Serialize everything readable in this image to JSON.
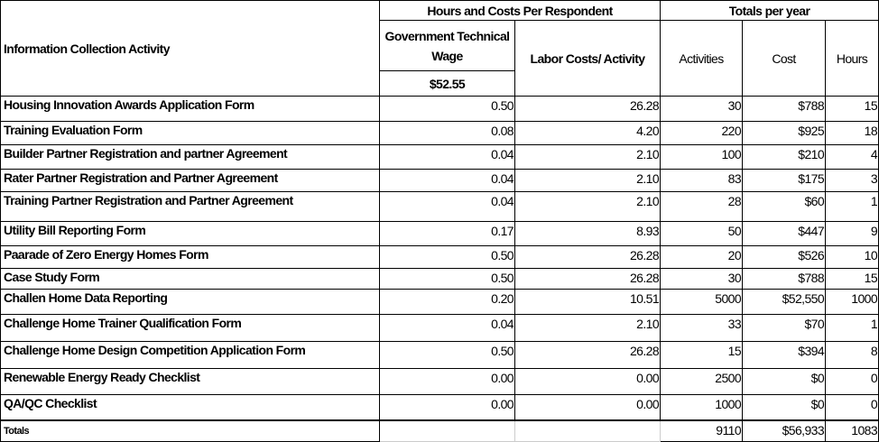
{
  "header": {
    "activity": "Information Collection Activity",
    "group_per_respondent": "Hours and Costs Per Respondent",
    "group_totals": "Totals per year",
    "wage_label": "Government Technical Wage",
    "wage_value": "$52.55",
    "labor_costs": "Labor Costs/ Activity",
    "activities": "Activities",
    "cost": "Cost",
    "hours": "Hours"
  },
  "rows": [
    {
      "activity": "Housing Innovation Awards Application Form",
      "wage": "0.50",
      "labor": "26.28",
      "activities": "30",
      "cost": "$788",
      "hours": "15"
    },
    {
      "activity": "Training Evaluation Form",
      "wage": "0.08",
      "labor": "4.20",
      "activities": "220",
      "cost": "$925",
      "hours": "18"
    },
    {
      "activity": "Builder Partner Registration and partner Agreement",
      "wage": "0.04",
      "labor": "2.10",
      "activities": "100",
      "cost": "$210",
      "hours": "4"
    },
    {
      "activity": "Rater Partner Registration and Partner Agreement",
      "wage": "0.04",
      "labor": "2.10",
      "activities": "83",
      "cost": "$175",
      "hours": "3"
    },
    {
      "activity": "Training Partner Registration and Partner Agreement",
      "wage": "0.04",
      "labor": "2.10",
      "activities": "28",
      "cost": "$60",
      "hours": "1"
    },
    {
      "activity": "Utility Bill Reporting Form",
      "wage": "0.17",
      "labor": "8.93",
      "activities": "50",
      "cost": "$447",
      "hours": "9"
    },
    {
      "activity": "Paarade of Zero Energy Homes Form",
      "wage": "0.50",
      "labor": "26.28",
      "activities": "20",
      "cost": "$526",
      "hours": "10"
    },
    {
      "activity": "Case Study Form",
      "wage": "0.50",
      "labor": "26.28",
      "activities": "30",
      "cost": "$788",
      "hours": "15"
    },
    {
      "activity": "Challen Home Data Reporting",
      "wage": "0.20",
      "labor": "10.51",
      "activities": "5000",
      "cost": "$52,550",
      "hours": "1000"
    },
    {
      "activity": "Challenge Home Trainer Qualification Form",
      "wage": "0.04",
      "labor": "2.10",
      "activities": "33",
      "cost": "$70",
      "hours": "1"
    },
    {
      "activity": "Challenge Home Design Competition Application Form",
      "wage": "0.50",
      "labor": "26.28",
      "activities": "15",
      "cost": "$394",
      "hours": "8"
    },
    {
      "activity": "Renewable Energy Ready Checklist",
      "wage": "0.00",
      "labor": "0.00",
      "activities": "2500",
      "cost": "$0",
      "hours": "0"
    },
    {
      "activity": "QA/QC Checklist",
      "wage": "0.00",
      "labor": "0.00",
      "activities": "1000",
      "cost": "$0",
      "hours": "0"
    }
  ],
  "totals": {
    "label": "Totals",
    "activities": "9110",
    "cost": "$56,933",
    "hours": "1083"
  }
}
